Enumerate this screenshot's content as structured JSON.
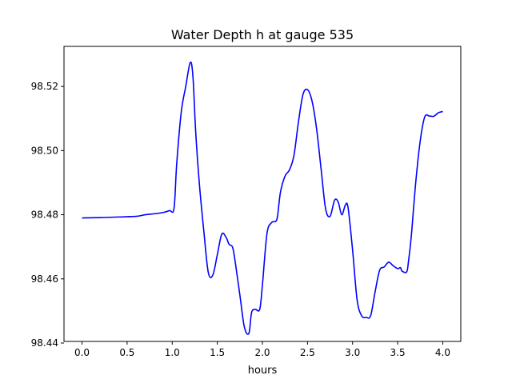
{
  "chart_data": {
    "type": "line",
    "title": "Water Depth h at gauge 535",
    "xlabel": "hours",
    "ylabel": "",
    "xlim": [
      -0.2,
      4.2
    ],
    "ylim": [
      98.4405,
      98.5325
    ],
    "xticks": [
      0.0,
      0.5,
      1.0,
      1.5,
      2.0,
      2.5,
      3.0,
      3.5,
      4.0
    ],
    "xtick_labels": [
      "0.0",
      "0.5",
      "1.0",
      "1.5",
      "2.0",
      "2.5",
      "3.0",
      "3.5",
      "4.0"
    ],
    "yticks": [
      98.44,
      98.46,
      98.48,
      98.5,
      98.52
    ],
    "ytick_labels": [
      "98.44",
      "98.46",
      "98.48",
      "98.50",
      "98.52"
    ],
    "grid": false,
    "legend": "none",
    "series": [
      {
        "color": "#0000ff",
        "x": [
          0.0,
          0.2,
          0.4,
          0.6,
          0.7,
          0.8,
          0.9,
          0.97,
          1.02,
          1.05,
          1.1,
          1.15,
          1.2,
          1.23,
          1.26,
          1.3,
          1.35,
          1.4,
          1.45,
          1.5,
          1.55,
          1.6,
          1.63,
          1.67,
          1.7,
          1.75,
          1.8,
          1.85,
          1.88,
          1.92,
          1.97,
          2.0,
          2.05,
          2.1,
          2.15,
          2.17,
          2.2,
          2.25,
          2.3,
          2.35,
          2.4,
          2.45,
          2.5,
          2.55,
          2.6,
          2.65,
          2.7,
          2.75,
          2.8,
          2.84,
          2.88,
          2.92,
          2.95,
          3.0,
          3.05,
          3.1,
          3.15,
          3.2,
          3.25,
          3.3,
          3.35,
          3.4,
          3.45,
          3.5,
          3.53,
          3.55,
          3.6,
          3.62,
          3.65,
          3.7,
          3.75,
          3.8,
          3.85,
          3.9,
          3.95,
          4.0
        ],
        "y": [
          98.479,
          98.4791,
          98.4793,
          98.4795,
          98.48,
          98.4803,
          98.4807,
          98.4813,
          98.482,
          98.496,
          98.512,
          98.52,
          98.5275,
          98.523,
          98.506,
          98.49,
          98.475,
          98.462,
          98.4612,
          98.4675,
          98.474,
          98.4728,
          98.4708,
          98.4698,
          98.465,
          98.455,
          98.445,
          98.443,
          98.4495,
          98.4505,
          98.4505,
          98.458,
          98.474,
          98.4775,
          98.478,
          98.48,
          98.487,
          98.492,
          98.494,
          98.4985,
          98.509,
          98.5175,
          98.519,
          98.5155,
          98.507,
          98.4945,
          98.482,
          98.4795,
          98.4845,
          98.484,
          98.48,
          98.483,
          98.4822,
          98.469,
          98.4535,
          98.4485,
          98.448,
          98.4485,
          98.456,
          98.4627,
          98.4637,
          98.4652,
          98.4641,
          98.4632,
          98.4635,
          98.4624,
          98.4622,
          98.4655,
          98.473,
          98.49,
          98.503,
          98.5105,
          98.5108,
          98.5107,
          98.5118,
          98.5122
        ]
      }
    ]
  }
}
